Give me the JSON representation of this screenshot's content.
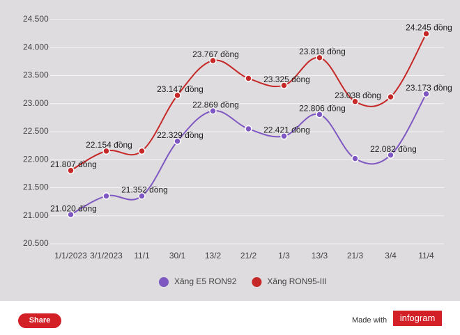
{
  "chart_data": {
    "type": "line",
    "categories": [
      "1/1/2023",
      "3/1/2023",
      "11/1",
      "30/1",
      "13/2",
      "21/2",
      "1/3",
      "13/3",
      "21/3",
      "3/4",
      "11/4"
    ],
    "series": [
      {
        "name": "Xăng E5 RON92",
        "color": "#7e57c2",
        "values": [
          21020,
          21352,
          21352,
          22329,
          22869,
          22550,
          22421,
          22806,
          22020,
          22082,
          23173
        ],
        "value_labels": [
          "21.020 đồng",
          null,
          "21.352 đồng",
          "22.329 đồng",
          "22.869 đồng",
          null,
          "22.421 đồng",
          "22.806 đồng",
          null,
          "22.082 đồng",
          "23.173 đồng"
        ]
      },
      {
        "name": "Xăng RON95-III",
        "color": "#c62828",
        "values": [
          21807,
          22154,
          22154,
          23147,
          23767,
          23450,
          23325,
          23818,
          23038,
          23120,
          24245
        ],
        "value_labels": [
          "21.807 đồng",
          "22.154 đồng",
          null,
          "23.147 đồng",
          "23.767 đồng",
          null,
          "23.325 đồng",
          "23.818 đồng",
          "23.038 đồng",
          null,
          "24.245 đồng"
        ]
      }
    ],
    "ylim": [
      20500,
      24500
    ],
    "yticks": [
      {
        "value": 20500,
        "label": "20.500"
      },
      {
        "value": 21000,
        "label": "21.000"
      },
      {
        "value": 21500,
        "label": "21.500"
      },
      {
        "value": 22000,
        "label": "22.000"
      },
      {
        "value": 22500,
        "label": "22.500"
      },
      {
        "value": 23000,
        "label": "23.000"
      },
      {
        "value": 23500,
        "label": "23.500"
      },
      {
        "value": 24000,
        "label": "24.000"
      },
      {
        "value": 24500,
        "label": "24.500"
      }
    ],
    "grid": true,
    "legend": "bottom"
  },
  "footer": {
    "share": "Share",
    "made_with": "Made with",
    "brand": "infogram"
  }
}
